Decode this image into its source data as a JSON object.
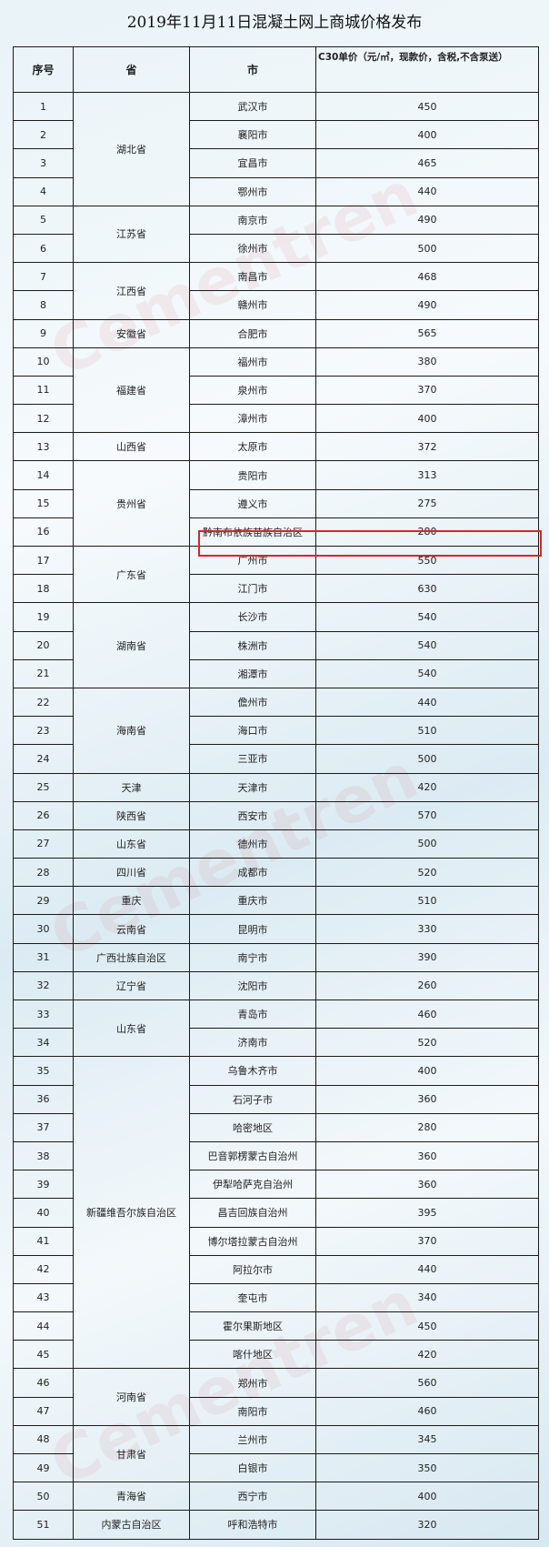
{
  "title": "2019年11月11日混凝土网上商城价格发布",
  "headers": {
    "no": "序号",
    "province": "省",
    "city": "市",
    "price": "C30单价（元/㎡，现款价，含税,不含泵送）"
  },
  "watermark": "Cementren.com 水泥人网",
  "highlight_color": "#d8262b",
  "highlighted_row": 18,
  "rows": [
    {
      "no": "1",
      "province": "湖北省",
      "span": 4,
      "city": "武汉市",
      "price": "450"
    },
    {
      "no": "2",
      "city": "襄阳市",
      "price": "400"
    },
    {
      "no": "3",
      "city": "宜昌市",
      "price": "465"
    },
    {
      "no": "4",
      "city": "鄂州市",
      "price": "440"
    },
    {
      "no": "5",
      "province": "江苏省",
      "span": 2,
      "city": "南京市",
      "price": "490"
    },
    {
      "no": "6",
      "city": "徐州市",
      "price": "500"
    },
    {
      "no": "7",
      "province": "江西省",
      "span": 2,
      "city": "南昌市",
      "price": "468"
    },
    {
      "no": "8",
      "city": "赣州市",
      "price": "490"
    },
    {
      "no": "9",
      "province": "安徽省",
      "span": 1,
      "city": "合肥市",
      "price": "565"
    },
    {
      "no": "10",
      "province": "福建省",
      "span": 3,
      "city": "福州市",
      "price": "380"
    },
    {
      "no": "11",
      "city": "泉州市",
      "price": "370"
    },
    {
      "no": "12",
      "city": "漳州市",
      "price": "400"
    },
    {
      "no": "13",
      "province": "山西省",
      "span": 1,
      "city": "太原市",
      "price": "372"
    },
    {
      "no": "14",
      "province": "贵州省",
      "span": 3,
      "city": "贵阳市",
      "price": "313"
    },
    {
      "no": "15",
      "city": "遵义市",
      "price": "275"
    },
    {
      "no": "16",
      "city": "黔南布依族苗族自治区",
      "price": "280"
    },
    {
      "no": "17",
      "province": "广东省",
      "span": 2,
      "city": "广州市",
      "price": "550"
    },
    {
      "no": "18",
      "city": "江门市",
      "price": "630"
    },
    {
      "no": "19",
      "province": "湖南省",
      "span": 3,
      "city": "长沙市",
      "price": "540"
    },
    {
      "no": "20",
      "city": "株洲市",
      "price": "540"
    },
    {
      "no": "21",
      "city": "湘潭市",
      "price": "540"
    },
    {
      "no": "22",
      "province": "海南省",
      "span": 3,
      "city": "儋州市",
      "price": "440"
    },
    {
      "no": "23",
      "city": "海口市",
      "price": "510"
    },
    {
      "no": "24",
      "city": "三亚市",
      "price": "500"
    },
    {
      "no": "25",
      "province": "天津",
      "span": 1,
      "city": "天津市",
      "price": "420"
    },
    {
      "no": "26",
      "province": "陕西省",
      "span": 1,
      "city": "西安市",
      "price": "570"
    },
    {
      "no": "27",
      "province": "山东省",
      "span": 1,
      "city": "德州市",
      "price": "500"
    },
    {
      "no": "28",
      "province": "四川省",
      "span": 1,
      "city": "成都市",
      "price": "520"
    },
    {
      "no": "29",
      "province": "重庆",
      "span": 1,
      "city": "重庆市",
      "price": "510"
    },
    {
      "no": "30",
      "province": "云南省",
      "span": 1,
      "city": "昆明市",
      "price": "330"
    },
    {
      "no": "31",
      "province": "广西壮族自治区",
      "span": 1,
      "city": "南宁市",
      "price": "390"
    },
    {
      "no": "32",
      "province": "辽宁省",
      "span": 1,
      "city": "沈阳市",
      "price": "260"
    },
    {
      "no": "33",
      "province": "山东省",
      "span": 2,
      "city": "青岛市",
      "price": "460"
    },
    {
      "no": "34",
      "city": "济南市",
      "price": "520"
    },
    {
      "no": "35",
      "province": "新疆维吾尔族自治区",
      "span": 11,
      "city": "乌鲁木齐市",
      "price": "400"
    },
    {
      "no": "36",
      "city": "石河子市",
      "price": "360"
    },
    {
      "no": "37",
      "city": "哈密地区",
      "price": "280"
    },
    {
      "no": "38",
      "city": "巴音郭楞蒙古自治州",
      "price": "360"
    },
    {
      "no": "39",
      "city": "伊犁哈萨克自治州",
      "price": "360"
    },
    {
      "no": "40",
      "city": "昌吉回族自治州",
      "price": "395"
    },
    {
      "no": "41",
      "city": "博尔塔拉蒙古自治州",
      "price": "370"
    },
    {
      "no": "42",
      "city": "阿拉尔市",
      "price": "440"
    },
    {
      "no": "43",
      "city": "奎屯市",
      "price": "340"
    },
    {
      "no": "44",
      "city": "霍尔果斯地区",
      "price": "450"
    },
    {
      "no": "45",
      "city": "喀什地区",
      "price": "420"
    },
    {
      "no": "46",
      "province": "河南省",
      "span": 2,
      "city": "郑州市",
      "price": "560"
    },
    {
      "no": "47",
      "city": "南阳市",
      "price": "460"
    },
    {
      "no": "48",
      "province": "甘肃省",
      "span": 2,
      "city": "兰州市",
      "price": "345"
    },
    {
      "no": "49",
      "city": "白银市",
      "price": "350"
    },
    {
      "no": "50",
      "province": "青海省",
      "span": 1,
      "city": "西宁市",
      "price": "400"
    },
    {
      "no": "51",
      "province": "内蒙古自治区",
      "span": 1,
      "city": "呼和浩特市",
      "price": "320"
    }
  ]
}
